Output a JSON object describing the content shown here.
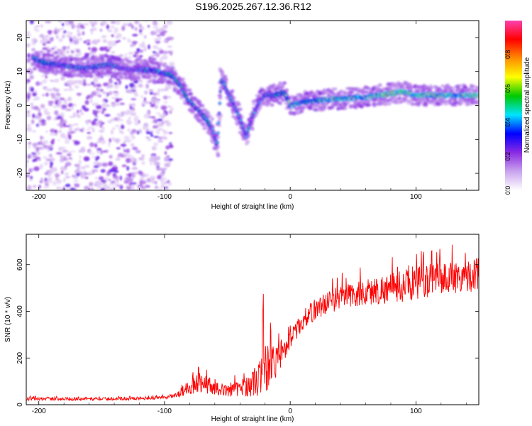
{
  "title": "S196.2025.267.12.36.R12",
  "chart_data": [
    {
      "type": "heatmap",
      "xlabel": "Height of straight line (km)",
      "ylabel": "Frequency (Hz)",
      "xlim": [
        -210,
        150
      ],
      "ylim": [
        -25,
        25
      ],
      "xticks": [
        -200,
        -100,
        0,
        100
      ],
      "yticks": [
        -20,
        -10,
        0,
        10,
        20
      ],
      "colorbar": {
        "label": "Normalized spectral amplitude",
        "range": [
          0,
          1
        ],
        "ticks": [
          "0.0",
          "0.2",
          "0.4",
          "0.6",
          "0.8"
        ],
        "colors": [
          "#ffffff",
          "#c9a4ee",
          "#8a2be2",
          "#0000ff",
          "#00e5ff",
          "#00c800",
          "#ffff00",
          "#ff8c00",
          "#ff0000",
          "#ff40b0"
        ]
      },
      "ridge": [
        {
          "x": -205,
          "y": 14,
          "a": 0.5
        },
        {
          "x": -195,
          "y": 12.5,
          "a": 0.6
        },
        {
          "x": -185,
          "y": 12,
          "a": 0.5
        },
        {
          "x": -175,
          "y": 11.5,
          "a": 0.5
        },
        {
          "x": -165,
          "y": 11,
          "a": 0.5
        },
        {
          "x": -155,
          "y": 11.5,
          "a": 0.5
        },
        {
          "x": -145,
          "y": 12,
          "a": 0.5
        },
        {
          "x": -135,
          "y": 11,
          "a": 0.45
        },
        {
          "x": -125,
          "y": 10.5,
          "a": 0.4
        },
        {
          "x": -115,
          "y": 10.5,
          "a": 0.5
        },
        {
          "x": -105,
          "y": 10,
          "a": 0.55
        },
        {
          "x": -95,
          "y": 9,
          "a": 0.55
        },
        {
          "x": -88,
          "y": 6,
          "a": 0.5
        },
        {
          "x": -82,
          "y": 2,
          "a": 0.55
        },
        {
          "x": -77,
          "y": 0,
          "a": 0.5
        },
        {
          "x": -72,
          "y": -2,
          "a": 0.5
        },
        {
          "x": -67,
          "y": -4,
          "a": 0.55
        },
        {
          "x": -62,
          "y": -7,
          "a": 0.5
        },
        {
          "x": -58,
          "y": -12,
          "a": 0.45
        },
        {
          "x": -55,
          "y": 8,
          "a": 0.5
        },
        {
          "x": -50,
          "y": 4,
          "a": 0.5
        },
        {
          "x": -45,
          "y": 0,
          "a": 0.45
        },
        {
          "x": -40,
          "y": -4,
          "a": 0.45
        },
        {
          "x": -35,
          "y": -9,
          "a": 0.45
        },
        {
          "x": -30,
          "y": -3,
          "a": 0.45
        },
        {
          "x": -25,
          "y": 1,
          "a": 0.45
        },
        {
          "x": -20,
          "y": 3,
          "a": 0.5
        },
        {
          "x": -12,
          "y": 3,
          "a": 0.55
        },
        {
          "x": -5,
          "y": 4,
          "a": 0.6
        },
        {
          "x": 0,
          "y": 0,
          "a": 0.75
        },
        {
          "x": 10,
          "y": 1,
          "a": 0.7
        },
        {
          "x": 20,
          "y": 1.5,
          "a": 0.7
        },
        {
          "x": 40,
          "y": 2,
          "a": 0.75
        },
        {
          "x": 60,
          "y": 2.5,
          "a": 0.75
        },
        {
          "x": 80,
          "y": 3.5,
          "a": 0.85
        },
        {
          "x": 90,
          "y": 4,
          "a": 0.85
        },
        {
          "x": 100,
          "y": 3,
          "a": 0.8
        },
        {
          "x": 120,
          "y": 3,
          "a": 0.8
        },
        {
          "x": 150,
          "y": 3,
          "a": 0.85
        }
      ]
    },
    {
      "type": "line",
      "xlabel": "Height of straight line (km)",
      "ylabel": "SNR (10 * v/v)",
      "xlim": [
        -210,
        150
      ],
      "ylim": [
        0,
        730
      ],
      "xticks": [
        -200,
        -100,
        0,
        100
      ],
      "yticks": [
        0,
        200,
        400,
        600
      ],
      "series": [
        {
          "name": "SNR",
          "color": "#ff0000",
          "x": [
            -210,
            -180,
            -140,
            -100,
            -90,
            -80,
            -70,
            -60,
            -50,
            -40,
            -30,
            -20,
            -10,
            0,
            10,
            20,
            30,
            40,
            60,
            80,
            100,
            120,
            150
          ],
          "mean": [
            25,
            25,
            25,
            30,
            40,
            80,
            100,
            70,
            60,
            70,
            90,
            140,
            200,
            280,
            360,
            410,
            440,
            460,
            480,
            500,
            520,
            540,
            560
          ],
          "amp": [
            12,
            12,
            10,
            12,
            20,
            60,
            80,
            50,
            40,
            60,
            90,
            200,
            120,
            60,
            70,
            80,
            80,
            90,
            100,
            110,
            120,
            120,
            120
          ]
        }
      ]
    }
  ]
}
